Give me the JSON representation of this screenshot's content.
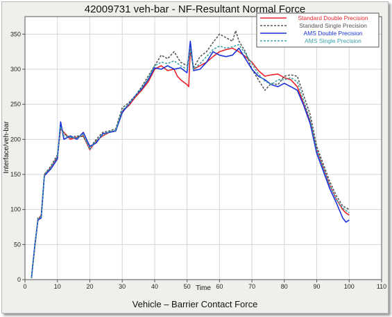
{
  "chart_data": {
    "type": "line",
    "title": "42009731 veh-bar - NF-Resultant Normal Force",
    "footer": "Vehicle – Barrier Contact Force",
    "xlabel": "Time",
    "ylabel": "Interface/veh-bar",
    "xlim": [
      0,
      110
    ],
    "ylim": [
      0,
      375
    ],
    "xticks": [
      0,
      10,
      20,
      30,
      40,
      50,
      60,
      70,
      80,
      90,
      100,
      110
    ],
    "yticks": [
      0,
      50,
      100,
      150,
      200,
      250,
      300,
      350
    ],
    "grid": true,
    "legend_position": "top-right",
    "series": [
      {
        "name": "Standard Double Precision",
        "color": "#e8232a",
        "dash": "solid",
        "x": [
          2,
          3,
          4,
          5,
          6,
          8,
          10,
          11,
          12,
          14,
          16,
          18,
          20,
          22,
          24,
          26,
          28,
          30,
          32,
          34,
          36,
          38,
          40,
          42,
          44,
          46,
          47,
          48,
          50,
          50.5,
          51,
          52,
          54,
          56,
          58,
          60,
          62,
          64,
          66,
          68,
          70,
          72,
          74,
          76,
          78,
          80,
          82,
          84,
          86,
          88,
          90,
          92,
          94,
          96,
          98,
          99,
          100
        ],
        "y": [
          2,
          45,
          85,
          92,
          150,
          160,
          175,
          215,
          210,
          200,
          203,
          205,
          185,
          198,
          205,
          210,
          212,
          240,
          248,
          260,
          270,
          282,
          300,
          305,
          298,
          300,
          290,
          285,
          278,
          275,
          330,
          300,
          305,
          310,
          318,
          325,
          328,
          330,
          325,
          318,
          310,
          298,
          290,
          292,
          293,
          288,
          285,
          275,
          250,
          225,
          185,
          160,
          135,
          115,
          100,
          95,
          92
        ]
      },
      {
        "name": "Standard Single Precision",
        "color": "#555555",
        "dash": "dashed",
        "x": [
          2,
          3,
          4,
          5,
          6,
          8,
          10,
          11,
          12,
          14,
          16,
          18,
          20,
          22,
          24,
          26,
          28,
          30,
          32,
          34,
          36,
          38,
          40,
          42,
          44,
          46,
          48,
          50,
          51,
          52,
          54,
          56,
          58,
          60,
          62,
          64,
          65,
          66,
          68,
          70,
          72,
          74,
          76,
          78,
          80,
          82,
          84,
          86,
          88,
          90,
          92,
          94,
          96,
          98,
          100
        ],
        "y": [
          2,
          45,
          88,
          90,
          150,
          162,
          178,
          220,
          208,
          202,
          205,
          204,
          188,
          200,
          210,
          212,
          215,
          245,
          252,
          262,
          275,
          290,
          305,
          320,
          315,
          325,
          310,
          305,
          325,
          302,
          318,
          325,
          338,
          350,
          345,
          340,
          355,
          340,
          325,
          300,
          285,
          270,
          280,
          278,
          290,
          292,
          290,
          262,
          235,
          190,
          165,
          140,
          120,
          105,
          100
        ]
      },
      {
        "name": "AMS Double Precision",
        "color": "#1830d8",
        "dash": "solid",
        "x": [
          2,
          3,
          4,
          5,
          6,
          8,
          10,
          11,
          12,
          14,
          16,
          18,
          20,
          22,
          24,
          26,
          28,
          30,
          32,
          34,
          36,
          38,
          40,
          42,
          44,
          46,
          48,
          50,
          51,
          52,
          54,
          56,
          58,
          60,
          62,
          64,
          66,
          68,
          70,
          72,
          74,
          76,
          78,
          80,
          82,
          84,
          86,
          88,
          90,
          92,
          94,
          96,
          98,
          99,
          100
        ],
        "y": [
          2,
          48,
          85,
          88,
          148,
          158,
          172,
          225,
          200,
          205,
          200,
          210,
          190,
          195,
          208,
          210,
          212,
          238,
          250,
          262,
          272,
          285,
          302,
          300,
          305,
          300,
          302,
          295,
          340,
          298,
          300,
          310,
          325,
          320,
          318,
          320,
          330,
          315,
          300,
          290,
          285,
          278,
          275,
          280,
          275,
          270,
          248,
          222,
          180,
          155,
          130,
          110,
          88,
          82,
          85
        ]
      },
      {
        "name": "AMS Single Precision",
        "color": "#3aa3a8",
        "dash": "dashed",
        "x": [
          2,
          3,
          4,
          5,
          6,
          8,
          10,
          11,
          12,
          14,
          16,
          18,
          20,
          22,
          24,
          26,
          28,
          30,
          32,
          34,
          36,
          38,
          40,
          42,
          44,
          46,
          48,
          50,
          51,
          52,
          54,
          56,
          58,
          60,
          62,
          64,
          66,
          68,
          70,
          72,
          74,
          76,
          78,
          80,
          82,
          84,
          86,
          88,
          90,
          92,
          94,
          96,
          98,
          100
        ],
        "y": [
          2,
          46,
          86,
          90,
          150,
          160,
          176,
          218,
          205,
          203,
          202,
          207,
          186,
          198,
          206,
          211,
          213,
          242,
          250,
          262,
          273,
          287,
          305,
          310,
          308,
          312,
          305,
          300,
          330,
          300,
          308,
          318,
          328,
          333,
          330,
          332,
          335,
          322,
          308,
          293,
          283,
          278,
          285,
          285,
          288,
          282,
          255,
          228,
          185,
          160,
          135,
          115,
          102,
          95
        ]
      }
    ]
  }
}
